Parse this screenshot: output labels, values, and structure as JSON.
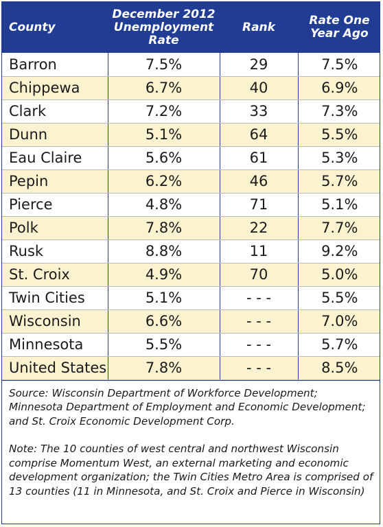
{
  "table": {
    "headers": {
      "county": "County",
      "rate": "December 2012 Unemployment Rate",
      "rank": "Rank",
      "rate_ago": "Rate One Year Ago"
    },
    "rows": [
      {
        "county": "Barron",
        "rate": "7.5%",
        "rank": "29",
        "rate_ago": "7.5%"
      },
      {
        "county": "Chippewa",
        "rate": "6.7%",
        "rank": "40",
        "rate_ago": "6.9%"
      },
      {
        "county": "Clark",
        "rate": "7.2%",
        "rank": "33",
        "rate_ago": "7.3%"
      },
      {
        "county": "Dunn",
        "rate": "5.1%",
        "rank": "64",
        "rate_ago": "5.5%"
      },
      {
        "county": "Eau Claire",
        "rate": "5.6%",
        "rank": "61",
        "rate_ago": "5.3%"
      },
      {
        "county": "Pepin",
        "rate": "6.2%",
        "rank": "46",
        "rate_ago": "5.7%"
      },
      {
        "county": "Pierce",
        "rate": "4.8%",
        "rank": "71",
        "rate_ago": "5.1%"
      },
      {
        "county": "Polk",
        "rate": "7.8%",
        "rank": "22",
        "rate_ago": "7.7%"
      },
      {
        "county": "Rusk",
        "rate": "8.8%",
        "rank": "11",
        "rate_ago": "9.2%"
      },
      {
        "county": "St. Croix",
        "rate": "4.9%",
        "rank": "70",
        "rate_ago": "5.0%"
      },
      {
        "county": "Twin Cities",
        "rate": "5.1%",
        "rank": "- - -",
        "rate_ago": "5.5%"
      },
      {
        "county": "Wisconsin",
        "rate": "6.6%",
        "rank": "- - -",
        "rate_ago": "7.0%"
      },
      {
        "county": "Minnesota",
        "rate": "5.5%",
        "rank": "- - -",
        "rate_ago": "5.7%"
      },
      {
        "county": "United States",
        "rate": "7.8%",
        "rank": "- - -",
        "rate_ago": "8.5%"
      }
    ]
  },
  "source": "Source: Wisconsin Department of Workforce Development; Minnesota Department of Employment and Economic Development; and St. Croix Economic Development Corp.",
  "note": "Note: The 10 counties of west central and northwest Wisconsin comprise Momentum West, an external marketing and economic development organization; the Twin Cities Metro Area is comprised of 13 counties (11 in Minnesota, and St. Croix and Pierce in Wisconsin)",
  "colors": {
    "header_bg": "#213c93",
    "alt_row_bg": "#fbf3d0",
    "border": "#2c3e8f"
  }
}
